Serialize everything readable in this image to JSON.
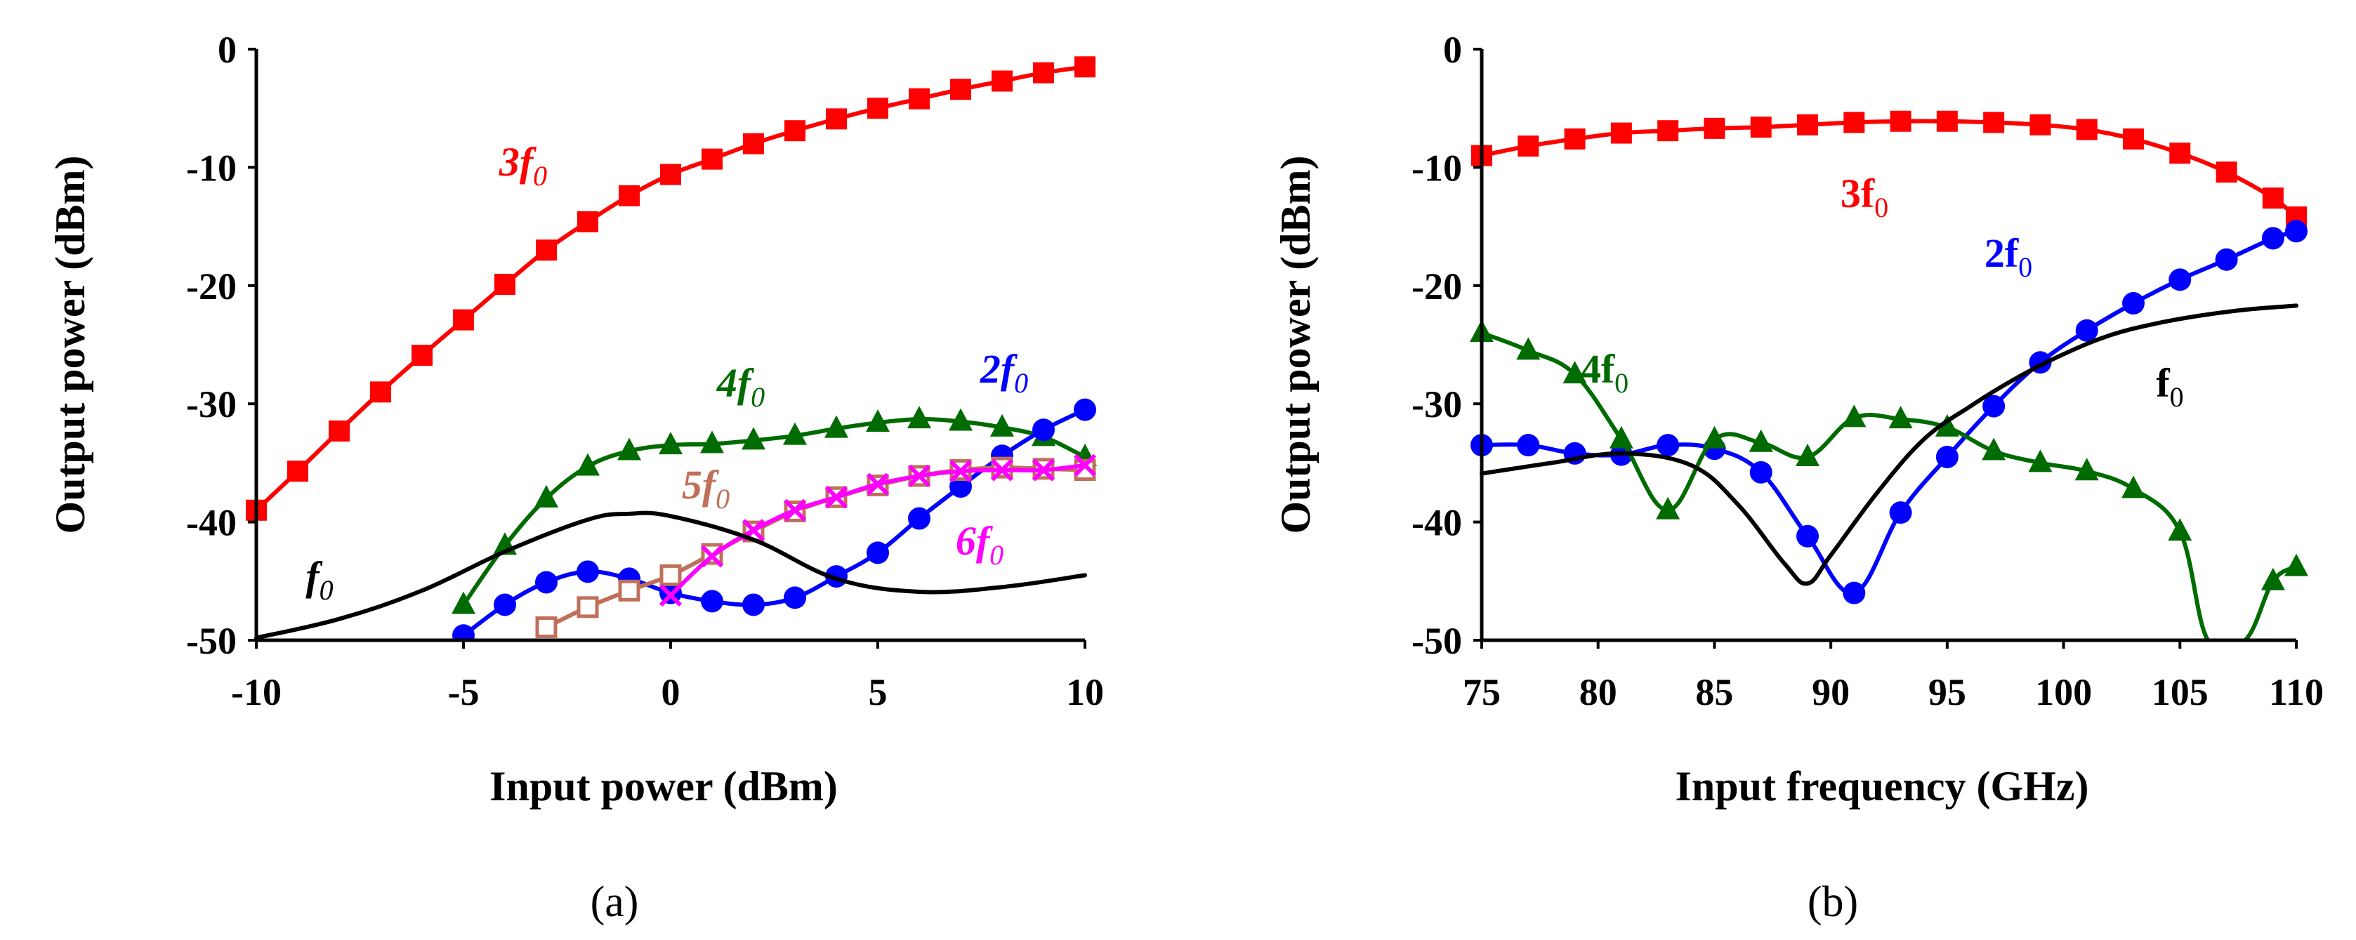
{
  "chart_data": [
    {
      "type": "line",
      "panel_label": "(a)",
      "xlabel": "Input power (dBm)",
      "ylabel": "Output power (dBm)",
      "xlim": [
        -10,
        10
      ],
      "ylim": [
        -50,
        0
      ],
      "xticks": [
        "-10",
        "-5",
        "0",
        "5",
        "10"
      ],
      "yticks": [
        "0",
        "-10",
        "-20",
        "-30",
        "-40",
        "-50"
      ],
      "series": [
        {
          "name": "3f0",
          "label": "3f",
          "sub": "0",
          "color": "#ff0000",
          "marker": "square",
          "x": [
            -10,
            -9,
            -8,
            -7,
            -6,
            -5,
            -4,
            -3,
            -2,
            -1,
            0,
            1,
            2,
            3,
            4,
            5,
            6,
            7,
            8,
            9,
            10
          ],
          "y": [
            -39,
            -35.7,
            -32.3,
            -29,
            -25.9,
            -22.9,
            -19.9,
            -17,
            -14.6,
            -12.4,
            -10.6,
            -9.3,
            -8,
            -6.9,
            -5.9,
            -5,
            -4.2,
            -3.4,
            -2.7,
            -2,
            -1.5
          ]
        },
        {
          "name": "4f0",
          "label": "4f",
          "sub": "0",
          "color": "#006b00",
          "marker": "triangle",
          "x": [
            -5,
            -4,
            -3,
            -2,
            -1,
            0,
            1,
            2,
            3,
            4,
            5,
            6,
            7,
            8,
            9,
            10
          ],
          "y": [
            -47,
            -42,
            -38,
            -35.3,
            -34,
            -33.5,
            -33.4,
            -33.1,
            -32.7,
            -32.1,
            -31.6,
            -31.3,
            -31.5,
            -32,
            -32.8,
            -34.5
          ]
        },
        {
          "name": "2f0",
          "label": "2f",
          "sub": "0",
          "color": "#0000ff",
          "marker": "circle",
          "x": [
            -5,
            -4,
            -3,
            -2,
            -1,
            0,
            1,
            2,
            3,
            4,
            5,
            6,
            7,
            8,
            9,
            10
          ],
          "y": [
            -49.6,
            -47,
            -45.1,
            -44.2,
            -44.8,
            -46,
            -46.7,
            -47,
            -46.4,
            -44.6,
            -42.6,
            -39.7,
            -37,
            -34.4,
            -32.2,
            -30.5
          ]
        },
        {
          "name": "5f0",
          "label": "5f",
          "sub": "0",
          "color": "#c0705a",
          "marker": "open-square",
          "x": [
            -3,
            -2,
            -1,
            0,
            1,
            2,
            3,
            4,
            5,
            6,
            7,
            8,
            9,
            10
          ],
          "y": [
            -48.9,
            -47.2,
            -45.8,
            -44.5,
            -42.7,
            -40.8,
            -39.1,
            -37.9,
            -36.9,
            -36.1,
            -35.6,
            -35.4,
            -35.5,
            -35.6
          ]
        },
        {
          "name": "6f0",
          "label": "6f",
          "sub": "0",
          "color": "#ff00ff",
          "marker": "x",
          "x": [
            0,
            1,
            2,
            3,
            4,
            5,
            6,
            7,
            8,
            9,
            10
          ],
          "y": [
            -46.2,
            -42.9,
            -40.7,
            -39,
            -37.9,
            -36.8,
            -36.1,
            -35.7,
            -35.6,
            -35.6,
            -35.2
          ]
        },
        {
          "name": "f0",
          "label": "f",
          "sub": "0",
          "color": "#000000",
          "marker": "none",
          "x": [
            -10,
            -8,
            -6,
            -4,
            -2,
            -1,
            0,
            2,
            4,
            6,
            8,
            10
          ],
          "y": [
            -49.8,
            -48.2,
            -45.8,
            -42.5,
            -39.8,
            -39.3,
            -39.5,
            -41.5,
            -44.8,
            -45.9,
            -45.5,
            -44.5
          ]
        }
      ]
    },
    {
      "type": "line",
      "panel_label": "(b)",
      "xlabel": "Input frequency (GHz)",
      "ylabel": "Output power (dBm)",
      "xlim": [
        75,
        110
      ],
      "ylim": [
        -50,
        0
      ],
      "xticks": [
        "75",
        "80",
        "85",
        "90",
        "95",
        "100",
        "105",
        "110"
      ],
      "yticks": [
        "0",
        "-10",
        "-20",
        "-30",
        "-40",
        "-50"
      ],
      "series": [
        {
          "name": "3f0",
          "label": "3f",
          "sub": "0",
          "color": "#ff0000",
          "marker": "square",
          "x": [
            75,
            77,
            79,
            81,
            83,
            85,
            87,
            89,
            91,
            93,
            95,
            97,
            99,
            101,
            103,
            105,
            107,
            109,
            110
          ],
          "y": [
            -9,
            -8.2,
            -7.6,
            -7.1,
            -6.9,
            -6.7,
            -6.6,
            -6.4,
            -6.2,
            -6.1,
            -6.1,
            -6.2,
            -6.4,
            -6.8,
            -7.6,
            -8.8,
            -10.4,
            -12.6,
            -14.2
          ]
        },
        {
          "name": "2f0",
          "label": "2f",
          "sub": "0",
          "color": "#0000ff",
          "marker": "circle",
          "x": [
            75,
            77,
            79,
            81,
            83,
            85,
            87,
            89,
            91,
            93,
            95,
            97,
            99,
            101,
            103,
            105,
            107,
            109,
            110
          ],
          "y": [
            -33.5,
            -33.5,
            -34.2,
            -34.3,
            -33.5,
            -33.8,
            -35.8,
            -41.2,
            -46,
            -39.2,
            -34.5,
            -30.2,
            -26.5,
            -23.8,
            -21.5,
            -19.5,
            -17.8,
            -16,
            -15.4
          ]
        },
        {
          "name": "4f0",
          "label": "4f",
          "sub": "0",
          "color": "#006b00",
          "marker": "triangle",
          "x": [
            75,
            77,
            79,
            81,
            83,
            85,
            87,
            89,
            91,
            93,
            95,
            97,
            99,
            101,
            103,
            105,
            106.2,
            107.8,
            109,
            110
          ],
          "y": [
            -24,
            -25.5,
            -27.5,
            -33,
            -39,
            -33,
            -33.3,
            -34.5,
            -31.2,
            -31.3,
            -32,
            -34,
            -35,
            -35.7,
            -37.2,
            -40.8,
            -50,
            -50,
            -45,
            -43.8
          ]
        },
        {
          "name": "f0",
          "label": "f",
          "sub": "0",
          "color": "#000000",
          "marker": "none",
          "x": [
            75,
            78,
            81,
            84,
            86,
            88,
            89,
            90,
            92,
            94,
            96,
            98,
            100,
            102,
            104,
            106,
            108,
            110
          ],
          "y": [
            -35.9,
            -35,
            -34.2,
            -35.2,
            -38.5,
            -43.5,
            -45.2,
            -42.8,
            -37.5,
            -33,
            -30.2,
            -27.8,
            -25.8,
            -24.2,
            -23.2,
            -22.5,
            -22,
            -21.7
          ]
        }
      ]
    }
  ]
}
